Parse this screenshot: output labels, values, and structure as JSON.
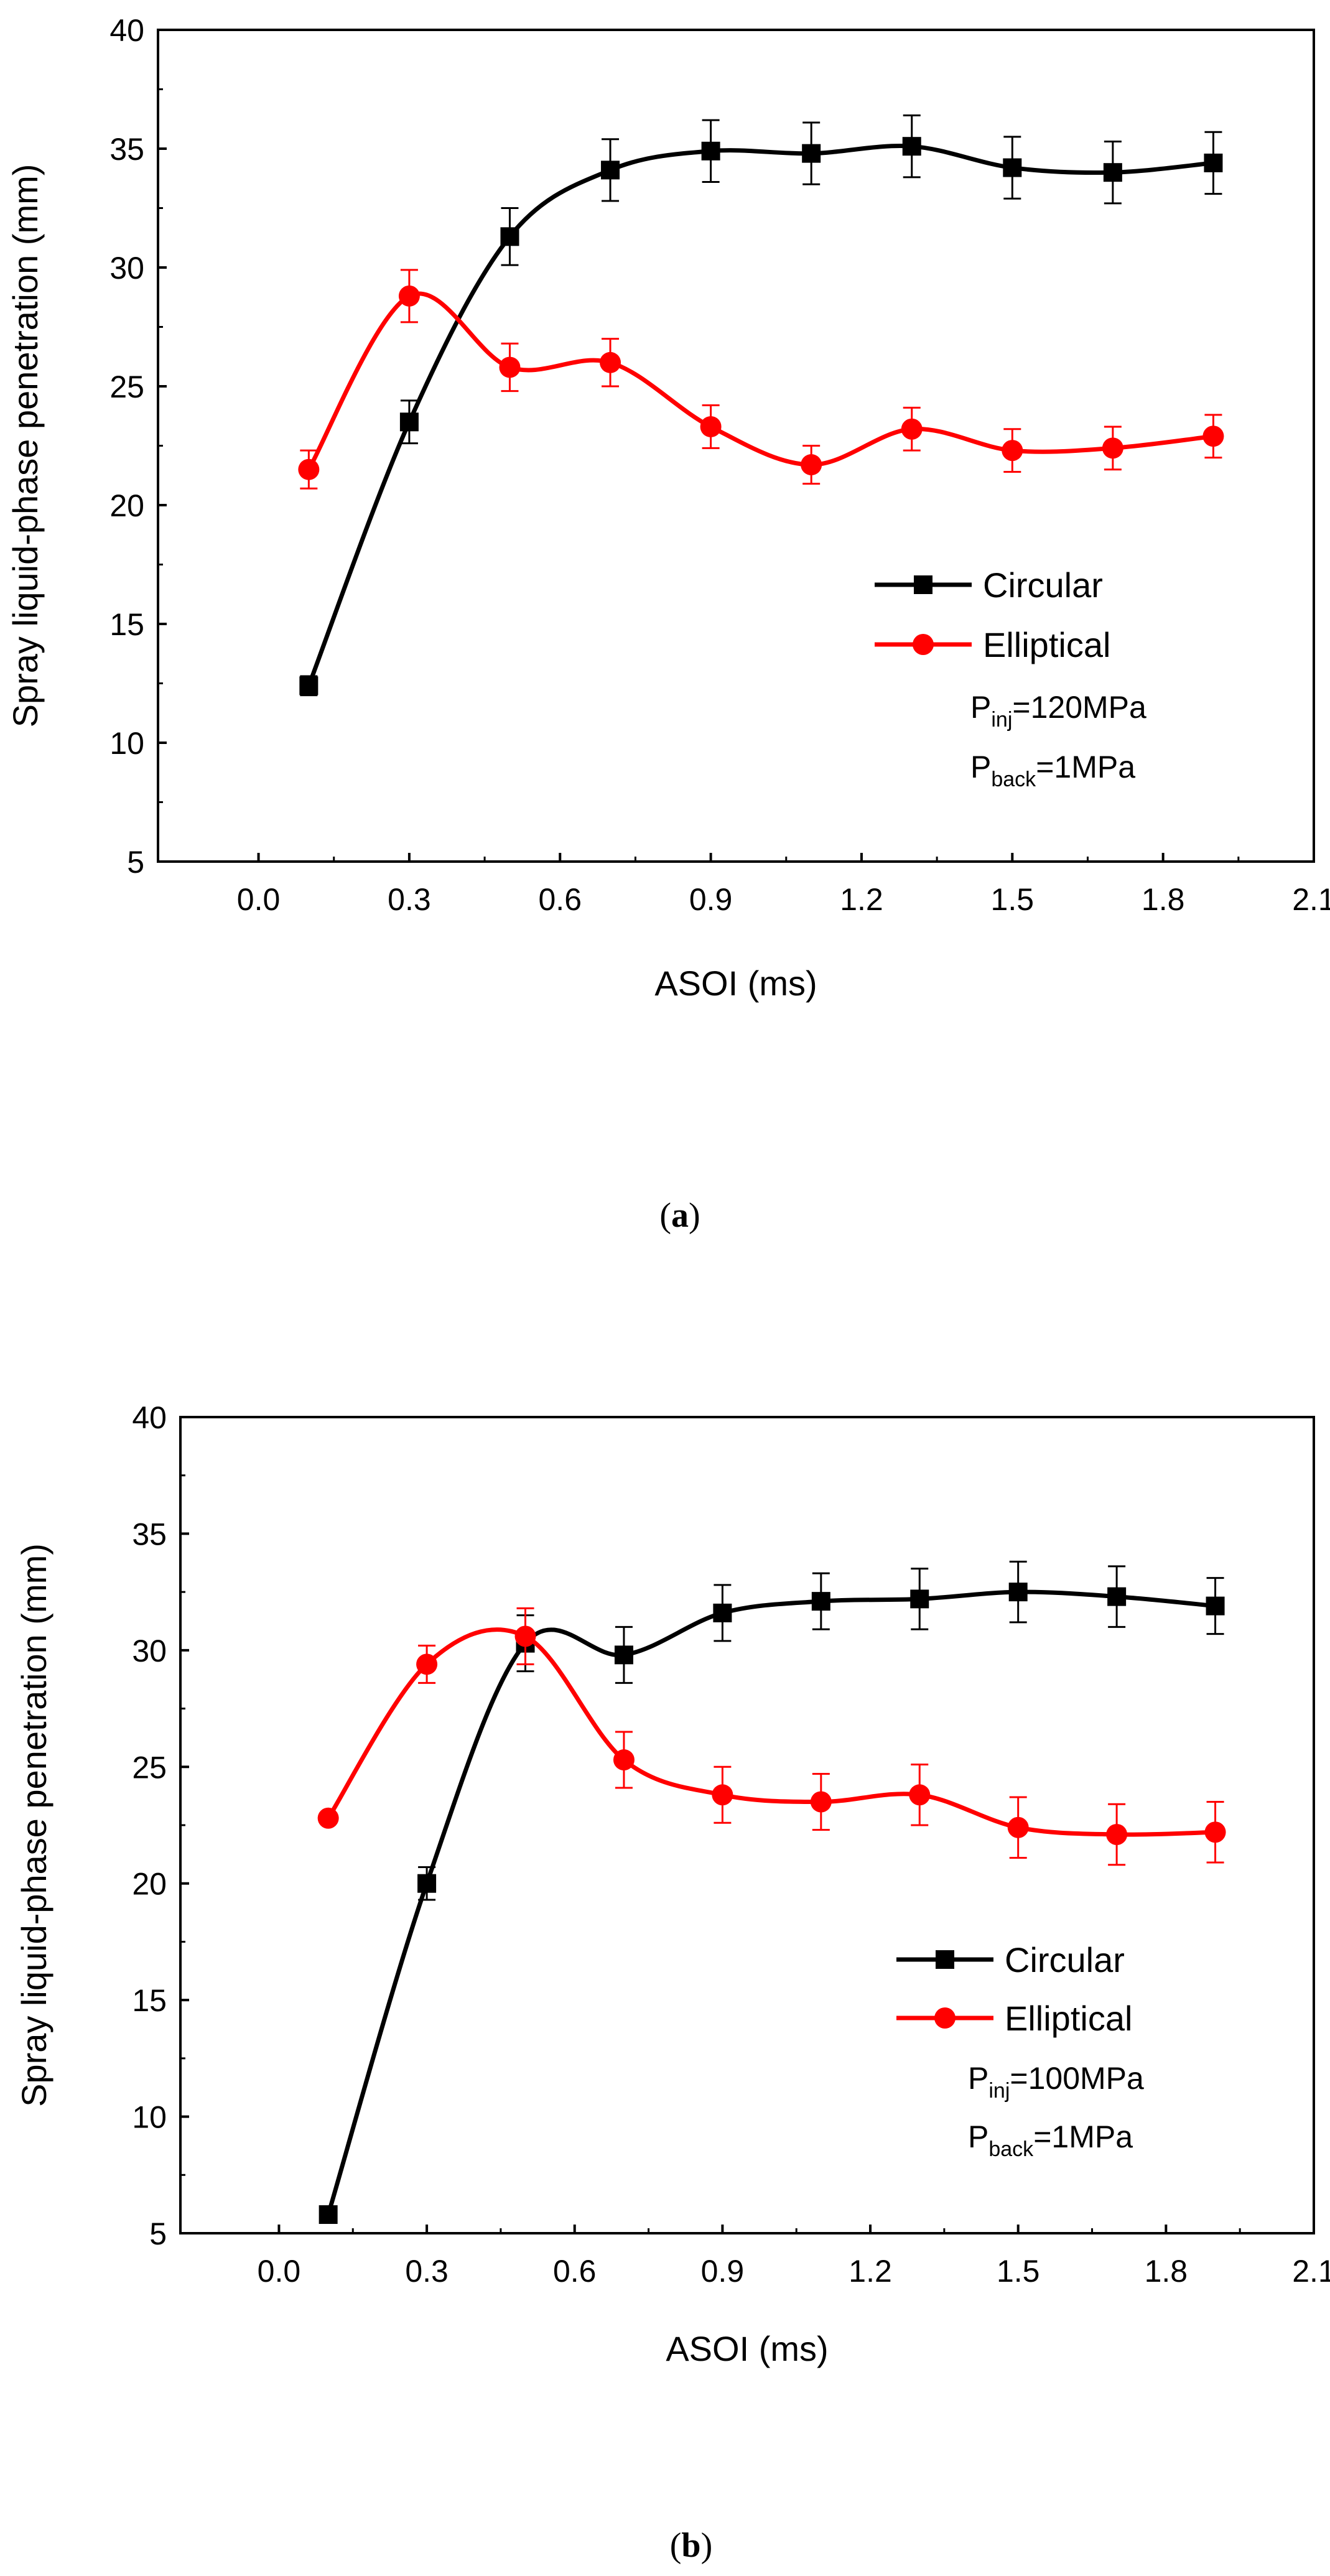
{
  "chart_data": [
    {
      "type": "line",
      "panel": "a",
      "caption_open": "(",
      "caption_letter": "a",
      "caption_close": ")",
      "xlabel": "ASOI (ms)",
      "ylabel": "Spray liquid-phase penetration (mm)",
      "xlim": [
        -0.2,
        2.1
      ],
      "ylim": [
        5,
        40
      ],
      "xticks": [
        "0.0",
        "0.3",
        "0.6",
        "0.9",
        "1.2",
        "1.5",
        "1.8",
        "2.1"
      ],
      "xtick_values": [
        0.0,
        0.3,
        0.6,
        0.9,
        1.2,
        1.5,
        1.8,
        2.1
      ],
      "yticks": [
        "5",
        "10",
        "15",
        "20",
        "25",
        "30",
        "35",
        "40"
      ],
      "ytick_values": [
        5,
        10,
        15,
        20,
        25,
        30,
        35,
        40
      ],
      "legend_position": "right",
      "annotation": {
        "p1_main": "P",
        "p1_sub": "inj",
        "p1_rest": "=120MPa",
        "p2_main": "P",
        "p2_sub": "back",
        "p2_rest": "=1MPa"
      },
      "series": [
        {
          "name": "Circular",
          "color": "#000000",
          "marker": "square",
          "x": [
            0.1,
            0.3,
            0.5,
            0.7,
            0.9,
            1.1,
            1.3,
            1.5,
            1.7,
            1.9
          ],
          "y": [
            12.4,
            23.5,
            31.3,
            34.1,
            34.9,
            34.8,
            35.1,
            34.2,
            34.0,
            34.4
          ],
          "err": [
            0.4,
            0.9,
            1.2,
            1.3,
            1.3,
            1.3,
            1.3,
            1.3,
            1.3,
            1.3
          ]
        },
        {
          "name": "Elliptical",
          "color": "#ff0000",
          "marker": "circle",
          "x": [
            0.1,
            0.3,
            0.5,
            0.7,
            0.9,
            1.1,
            1.3,
            1.5,
            1.7,
            1.9
          ],
          "y": [
            21.5,
            28.8,
            25.8,
            26.0,
            23.3,
            21.7,
            23.2,
            22.3,
            22.4,
            22.9
          ],
          "err": [
            0.8,
            1.1,
            1.0,
            1.0,
            0.9,
            0.8,
            0.9,
            0.9,
            0.9,
            0.9
          ]
        }
      ]
    },
    {
      "type": "line",
      "panel": "b",
      "caption_open": "(",
      "caption_letter": "b",
      "caption_close": ")",
      "xlabel": "ASOI (ms)",
      "ylabel": "Spray liquid-phase penetration (mm)",
      "xlim": [
        -0.2,
        2.1
      ],
      "ylim": [
        5,
        40
      ],
      "xticks": [
        "0.0",
        "0.3",
        "0.6",
        "0.9",
        "1.2",
        "1.5",
        "1.8",
        "2.1"
      ],
      "xtick_values": [
        0.0,
        0.3,
        0.6,
        0.9,
        1.2,
        1.5,
        1.8,
        2.1
      ],
      "yticks": [
        "5",
        "10",
        "15",
        "20",
        "25",
        "30",
        "35",
        "40"
      ],
      "ytick_values": [
        5,
        10,
        15,
        20,
        25,
        30,
        35,
        40
      ],
      "legend_position": "right",
      "annotation": {
        "p1_main": "P",
        "p1_sub": "inj",
        "p1_rest": "=100MPa",
        "p2_main": "P",
        "p2_sub": "back",
        "p2_rest": "=1MPa"
      },
      "series": [
        {
          "name": "Circular",
          "color": "#000000",
          "marker": "square",
          "x": [
            0.1,
            0.3,
            0.5,
            0.7,
            0.9,
            1.1,
            1.3,
            1.5,
            1.7,
            1.9
          ],
          "y": [
            5.8,
            20.0,
            30.3,
            29.8,
            31.6,
            32.1,
            32.2,
            32.5,
            32.3,
            31.9
          ],
          "err": [
            0.0,
            0.7,
            1.2,
            1.2,
            1.2,
            1.2,
            1.3,
            1.3,
            1.3,
            1.2
          ]
        },
        {
          "name": "Elliptical",
          "color": "#ff0000",
          "marker": "circle",
          "x": [
            0.1,
            0.3,
            0.5,
            0.7,
            0.9,
            1.1,
            1.3,
            1.5,
            1.7,
            1.9
          ],
          "y": [
            22.8,
            29.4,
            30.6,
            25.3,
            23.8,
            23.5,
            23.8,
            22.4,
            22.1,
            22.2
          ],
          "err": [
            0.0,
            0.8,
            1.2,
            1.2,
            1.2,
            1.2,
            1.3,
            1.3,
            1.3,
            1.3
          ]
        }
      ]
    }
  ]
}
